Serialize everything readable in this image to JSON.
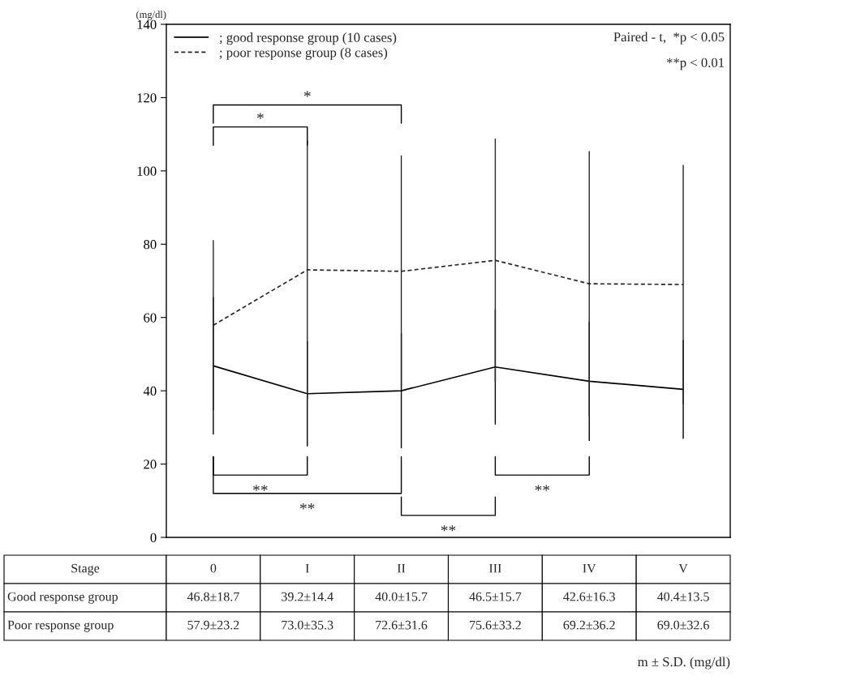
{
  "chart_data": {
    "type": "line",
    "ylabel": "(mg/dl)",
    "categories": [
      "0",
      "I",
      "II",
      "III",
      "IV",
      "V"
    ],
    "series": [
      {
        "name": "; good response group (10 cases)",
        "color": "#000000",
        "line_style": "solid",
        "values": [
          46.8,
          39.2,
          40.0,
          46.5,
          42.6,
          40.4
        ],
        "errors": [
          18.7,
          14.4,
          15.7,
          15.7,
          16.3,
          13.5
        ],
        "value_labels": [
          "46.8±18.7",
          "39.2±14.4",
          "40.0±15.7",
          "46.5±15.7",
          "42.6±16.3",
          "40.4±13.5"
        ]
      },
      {
        "name": "; poor response group (8 cases)",
        "color": "#262626",
        "line_style": "dashed",
        "values": [
          57.9,
          73.0,
          72.6,
          75.6,
          69.2,
          69.0
        ],
        "errors": [
          23.2,
          35.3,
          31.6,
          33.2,
          36.2,
          32.6
        ],
        "value_labels": [
          "57.9±23.2",
          "73.0±35.3",
          "72.6±31.6",
          "75.6±33.2",
          "69.2±36.2",
          "69.0±32.6"
        ]
      }
    ],
    "ylim": [
      0,
      140
    ],
    "yticks": [
      0,
      20,
      40,
      60,
      80,
      100,
      120,
      140
    ],
    "grid": false,
    "legend": "top left",
    "marker": "none",
    "annotations": [
      "Paired - t,  *p < 0.05",
      "**p < 0.01",
      "*",
      "*",
      "**",
      "**",
      "**",
      "**",
      "Stage",
      "Good response group",
      "Poor response group",
      "m ± S.D. (mg/dl)"
    ]
  }
}
